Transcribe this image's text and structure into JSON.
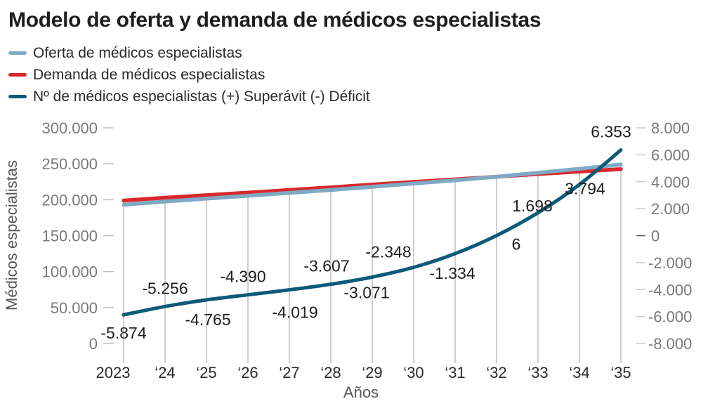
{
  "title": "Modelo de oferta y demanda de médicos especialistas",
  "legend": [
    {
      "label": "Oferta de médicos especialistas",
      "color": "#7fa9c4"
    },
    {
      "label": "Demanda de médicos especialistas",
      "color": "#d8282b"
    },
    {
      "label": "Nº de médicos especialistas (+) Superávit (-) Déficit",
      "color": "#0d5a7a"
    }
  ],
  "chart_data": {
    "type": "line",
    "title": "Modelo de oferta y demanda de médicos especialistas",
    "xlabel": "Años",
    "ylabel": "Médicos especialistas",
    "y2label": "",
    "categories": [
      "2023",
      "‘24",
      "‘25",
      "‘26",
      "‘27",
      "‘28",
      "‘29",
      "‘30",
      "‘31",
      "‘32",
      "‘33",
      "‘34",
      "‘35"
    ],
    "ylim": [
      0,
      300000
    ],
    "y_ticks": [
      {
        "value": 0,
        "label": "0"
      },
      {
        "value": 50000,
        "label": "50.000"
      },
      {
        "value": 100000,
        "label": "100.000"
      },
      {
        "value": 150000,
        "label": "150.000"
      },
      {
        "value": 200000,
        "label": "200.000"
      },
      {
        "value": 250000,
        "label": "250.000"
      },
      {
        "value": 300000,
        "label": "300.000"
      }
    ],
    "y2lim": [
      -8000,
      8000
    ],
    "y2_ticks": [
      {
        "value": 8000,
        "label": "8.000"
      },
      {
        "value": 6000,
        "label": "6.000"
      },
      {
        "value": 4000,
        "label": "4.000"
      },
      {
        "value": 2000,
        "label": "2.000"
      },
      {
        "value": 0,
        "label": "0"
      },
      {
        "value": -2000,
        "label": "-2.000"
      },
      {
        "value": -4000,
        "label": "-4.000"
      },
      {
        "value": -6000,
        "label": "-6.000"
      },
      {
        "value": -8000,
        "label": "-8.000"
      }
    ],
    "grid": "vertical",
    "legend_position": "top-left",
    "series": [
      {
        "name": "Oferta de médicos especialistas",
        "axis": "left",
        "color": "#7fa9c4",
        "values": [
          193000,
          197500,
          201500,
          205500,
          209500,
          213500,
          218000,
          222500,
          227000,
          232000,
          237500,
          243000,
          249000
        ]
      },
      {
        "name": "Demanda de médicos especialistas",
        "axis": "left",
        "color": "#d8282b",
        "values": [
          198900,
          202800,
          206300,
          209900,
          213500,
          217100,
          221100,
          224800,
          228300,
          232000,
          235800,
          239200,
          242600
        ]
      },
      {
        "name": "Nº de médicos especialistas (+) Superávit (-) Déficit",
        "axis": "right",
        "color": "#0d5a7a",
        "values": [
          -5874,
          -5256,
          -4765,
          -4390,
          -4019,
          -3607,
          -3071,
          -2348,
          -1334,
          6,
          1698,
          3794,
          6353
        ],
        "labels": [
          "-5.874",
          "-5.256",
          "-4.765",
          "-4.390",
          "-4.019",
          "-3.607",
          "-3.071",
          "-2.348",
          "-1.334",
          "6",
          "1.698",
          "3.794",
          "6.353"
        ]
      }
    ]
  }
}
